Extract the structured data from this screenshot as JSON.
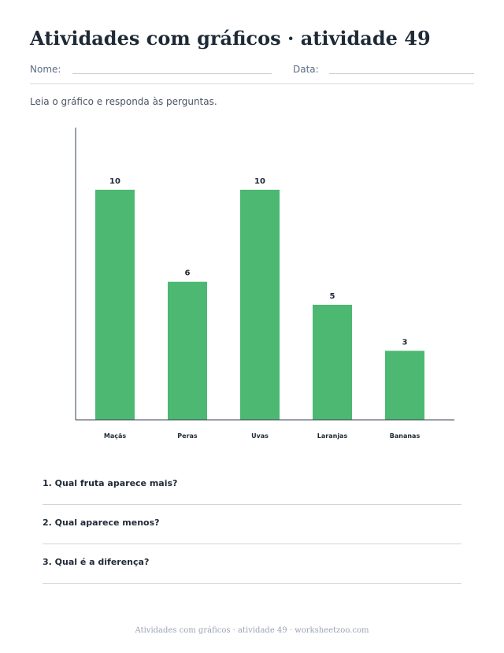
{
  "worksheet": {
    "title": "Atividades com gráficos · atividade 49",
    "name_label": "Nome:",
    "date_label": "Data:",
    "instructions": "Leia o gráfico e responda às perguntas.",
    "questions": [
      "1. Qual fruta aparece mais?",
      "2. Qual aparece menos?",
      "3. Qual é a diferença?"
    ],
    "footer": "Atividades com gráficos · atividade 49 · worksheetzoo.com"
  },
  "colors": {
    "bar": "#4cb872",
    "axis": "#374151",
    "text": "#1f2937"
  },
  "chart_data": {
    "type": "bar",
    "categories": [
      "Maçãs",
      "Peras",
      "Uvas",
      "Laranjas",
      "Bananas"
    ],
    "values": [
      10,
      6,
      10,
      5,
      3
    ],
    "data_labels": [
      "10",
      "6",
      "10",
      "5",
      "3"
    ],
    "title": "",
    "xlabel": "",
    "ylabel": "",
    "ylim": [
      0,
      12.7
    ],
    "grid": false
  }
}
